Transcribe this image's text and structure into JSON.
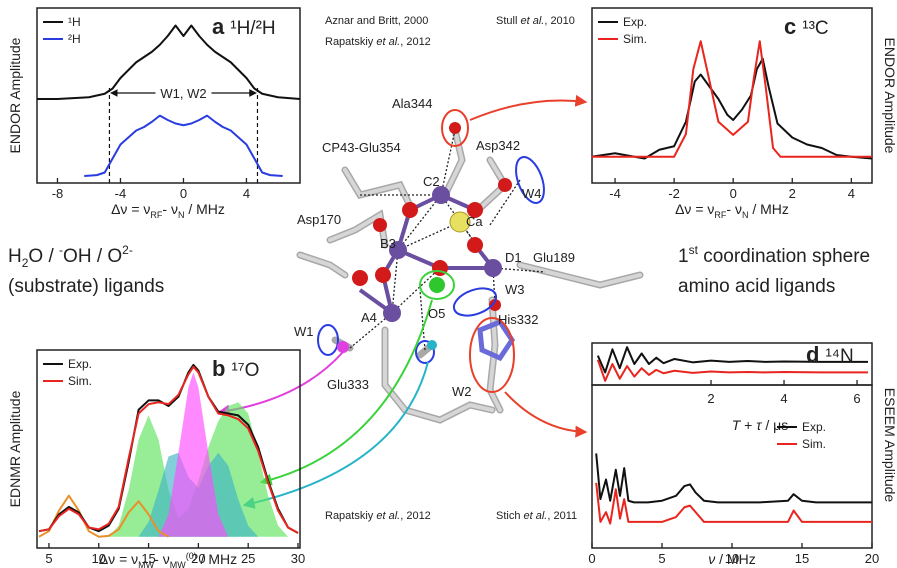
{
  "citations": {
    "a_1": "Aznar and Britt, 2000",
    "a_2": [
      "Rapatskiy ",
      "et al.",
      ", 2012"
    ],
    "c": [
      "Stull ",
      "et al.",
      ", 2010"
    ],
    "b": [
      "Rapatskiy ",
      "et al.",
      ", 2012"
    ],
    "d": [
      "Stich ",
      "et al.",
      ", 2011"
    ]
  },
  "captions": {
    "left_1": [
      "H",
      "2",
      "O / ",
      "-",
      "OH / O",
      "2-"
    ],
    "left_2": "(substrate) ligands",
    "right_1": [
      "1",
      "st",
      " coordination sphere"
    ],
    "right_2": "amino acid ligands"
  },
  "structure_labels": [
    "Ala344",
    "Asp342",
    "CP43-Glu354",
    "C2",
    "Ca",
    "W4",
    "Asp170",
    "B3",
    "Glu189",
    "D1",
    "W3",
    "O5",
    "A4",
    "His332",
    "W1",
    "Glu333",
    "W2"
  ],
  "chart_data": [
    {
      "type": "line",
      "label": "a",
      "title": "¹H/²H",
      "ylabel": "ENDOR Amplitude",
      "xlabel": [
        "Δν = ν",
        "RF",
        "- ν",
        "N",
        " / MHz"
      ],
      "xlim": [
        -9.3,
        7.4
      ],
      "xticks": [
        -8,
        -4,
        0,
        4
      ],
      "ylim": [
        0,
        10
      ],
      "legend": "upper left",
      "guides": [
        -4.7,
        4.7
      ],
      "annotation": "W1, W2",
      "series": [
        {
          "name": "¹H",
          "color": "#111111",
          "x": [
            -9.3,
            -8,
            -7,
            -6,
            -5,
            -4.5,
            -4,
            -3,
            -2,
            -1.5,
            -1,
            -0.5,
            0,
            0.5,
            1,
            1.5,
            2,
            3,
            4,
            4.5,
            5,
            6,
            7.4
          ],
          "values": [
            4.8,
            4.8,
            4.85,
            4.9,
            5.1,
            5.4,
            6.0,
            6.9,
            7.5,
            7.9,
            8.4,
            9.0,
            8.4,
            9.0,
            8.4,
            7.9,
            7.5,
            6.9,
            6.0,
            5.4,
            5.1,
            4.9,
            4.8
          ]
        },
        {
          "name": "²H",
          "color": "#2a3ce0",
          "x": [
            -6.3,
            -5.5,
            -5,
            -4.5,
            -4,
            -3.5,
            -3,
            -2.5,
            -2,
            -1.5,
            -1,
            -0.5,
            0,
            0.5,
            1,
            1.5,
            2,
            2.5,
            3,
            3.5,
            4,
            4.5,
            5,
            5.5,
            6.3
          ],
          "values": [
            0.4,
            0.45,
            0.6,
            1.4,
            2.2,
            2.6,
            3.0,
            3.2,
            3.5,
            3.85,
            3.6,
            3.4,
            3.3,
            3.4,
            3.6,
            3.85,
            3.5,
            3.2,
            3.0,
            2.6,
            2.2,
            1.4,
            0.6,
            0.45,
            0.4
          ]
        }
      ]
    },
    {
      "type": "line",
      "label": "c",
      "title": "¹³C",
      "ylabel": "ENDOR Amplitude",
      "xlabel": [
        "Δν = ν",
        "RF",
        "- ν",
        "N",
        " / MHz"
      ],
      "xlim": [
        -4.78,
        4.7
      ],
      "xticks": [
        -4,
        -2,
        0,
        2,
        4
      ],
      "ylim": [
        0,
        10
      ],
      "legend": "upper left",
      "series": [
        {
          "name": "Exp.",
          "color": "#111111",
          "x": [
            -4.8,
            -4,
            -3,
            -2.5,
            -2,
            -1.6,
            -1.3,
            -1.1,
            -0.8,
            -0.5,
            -0.2,
            0,
            0.3,
            0.6,
            0.8,
            1,
            1.2,
            1.5,
            2,
            2.5,
            3,
            3.5,
            4,
            4.7
          ],
          "values": [
            1.5,
            1.7,
            1.4,
            1.9,
            2.1,
            3.5,
            5.8,
            6.2,
            5.5,
            4.8,
            3.9,
            3.6,
            4.2,
            5.0,
            6.5,
            7.1,
            5.5,
            3.4,
            2.6,
            2.2,
            2.0,
            1.6,
            1.5,
            1.4
          ]
        },
        {
          "name": "Sim.",
          "color": "#e8251f",
          "x": [
            -4.8,
            -2,
            -1.6,
            -1.35,
            -1.1,
            -0.85,
            -0.5,
            0,
            0.5,
            0.7,
            0.9,
            1.1,
            1.35,
            1.6,
            2,
            4.7
          ],
          "values": [
            1.5,
            1.5,
            2.8,
            6.5,
            8.1,
            6.2,
            3.5,
            2.75,
            3.5,
            6.0,
            8.1,
            5.5,
            2.0,
            1.5,
            1.5,
            1.5
          ]
        }
      ]
    },
    {
      "type": "line",
      "label": "b",
      "title": "¹⁷O",
      "ylabel": "EDNMR Amplitude",
      "xlabel": [
        "Δν = ν",
        "MW",
        "- ν",
        "MW",
        "(0)",
        " / MHz"
      ],
      "xlim": [
        3.8,
        30.2
      ],
      "xticks": [
        5,
        10,
        15,
        20,
        25,
        30
      ],
      "ylim": [
        -0.6,
        10
      ],
      "legend": "upper left",
      "series": [
        {
          "color": "#5ee35e",
          "fill": true,
          "x": [
            11,
            12,
            13,
            14,
            15,
            16,
            17,
            18,
            19,
            20,
            21,
            22,
            23,
            24,
            25,
            26,
            27,
            28,
            29
          ],
          "values": [
            0,
            0.6,
            2.5,
            5.2,
            6.5,
            5.2,
            2.5,
            1.0,
            1.5,
            3.0,
            4.8,
            6.2,
            7.0,
            7.2,
            6.6,
            4.5,
            2.2,
            0.6,
            0
          ]
        },
        {
          "color": "#3fb6c4",
          "fill": true,
          "x": [
            14,
            15,
            16,
            17,
            18,
            19,
            20,
            21,
            22,
            23,
            24,
            25,
            26
          ],
          "values": [
            0,
            0.8,
            2.5,
            4.3,
            4.5,
            3.2,
            2.6,
            3.8,
            4.5,
            3.8,
            2.0,
            0.6,
            0
          ]
        },
        {
          "color": "#ff4cff",
          "fill": true,
          "x": [
            16,
            17,
            18,
            19,
            19.5,
            20,
            21,
            22,
            23
          ],
          "values": [
            0,
            1.2,
            4.5,
            8.0,
            8.8,
            8.0,
            4.5,
            1.2,
            0
          ]
        },
        {
          "color": "#e8902a",
          "x": [
            4,
            5,
            6,
            7,
            8,
            9,
            10,
            11,
            12,
            13,
            14,
            15,
            16,
            17
          ],
          "values": [
            0,
            0.3,
            1.4,
            2.2,
            1.4,
            0.3,
            0,
            0.05,
            0.4,
            1.3,
            1.9,
            1.2,
            0.3,
            0
          ]
        },
        {
          "name": "Exp.",
          "color": "#111111",
          "x": [
            4,
            5,
            6,
            7,
            8,
            9,
            10,
            11,
            12,
            13,
            14,
            15,
            16,
            17,
            18,
            19,
            19.5,
            20,
            21,
            22,
            23,
            24,
            25,
            26,
            27,
            28,
            29,
            30
          ],
          "values": [
            0.3,
            0.4,
            1.2,
            1.6,
            1.3,
            0.5,
            0.3,
            0.6,
            1.5,
            4.0,
            6.8,
            7.3,
            7.3,
            7.0,
            7.5,
            8.8,
            9.2,
            8.9,
            7.5,
            6.7,
            6.6,
            6.5,
            6.0,
            4.8,
            3.0,
            1.5,
            0.5,
            0.2
          ]
        },
        {
          "name": "Sim.",
          "color": "#e8251f",
          "x": [
            4,
            5,
            6,
            7,
            8,
            9,
            10,
            11,
            12,
            13,
            14,
            15,
            16,
            17,
            18,
            19,
            19.5,
            20,
            21,
            22,
            23,
            24,
            25,
            26,
            27,
            28,
            29,
            30
          ],
          "values": [
            0.3,
            0.4,
            1.1,
            1.5,
            1.2,
            0.5,
            0.4,
            0.7,
            1.6,
            4.2,
            6.6,
            7.1,
            7.2,
            7.1,
            7.6,
            8.7,
            9.1,
            8.8,
            7.5,
            6.6,
            6.5,
            6.3,
            5.8,
            4.6,
            2.9,
            1.4,
            0.5,
            0.2
          ]
        }
      ]
    },
    {
      "type": "line",
      "label": "d",
      "title": "¹⁴N",
      "ylabel": "ESEEM Amplitude",
      "xlabel": [
        "T",
        " + ",
        "τ",
        " / μs"
      ],
      "xlim": [
        -1.26,
        6.41
      ],
      "xticks": [
        2,
        4,
        6
      ],
      "ylim": [
        0,
        10
      ],
      "series": [
        {
          "color": "#111111",
          "x": [
            -1.1,
            -0.9,
            -0.7,
            -0.5,
            -0.3,
            -0.1,
            0.1,
            0.3,
            0.5,
            0.7,
            1,
            1.5,
            2,
            2.5,
            3,
            3.5,
            4,
            5,
            6.3
          ],
          "values": [
            7,
            3,
            8.5,
            4,
            9,
            5,
            7.5,
            5,
            6.5,
            5.2,
            6.2,
            5.4,
            5.8,
            5.5,
            5.7,
            5.5,
            5.6,
            5.5,
            5.5
          ]
        },
        {
          "color": "#e8251f",
          "x": [
            -1.1,
            -0.9,
            -0.7,
            -0.5,
            -0.3,
            -0.1,
            0.1,
            0.3,
            0.5,
            0.7,
            1,
            1.5,
            2,
            2.5,
            3,
            3.5,
            4,
            5,
            6.3
          ],
          "values": [
            6,
            1,
            5,
            1.5,
            4.5,
            2,
            4,
            2.4,
            3.6,
            2.8,
            3.4,
            2.9,
            3.2,
            3.0,
            3.1,
            3.0,
            3.1,
            3.0,
            3.0
          ]
        }
      ]
    },
    {
      "type": "line",
      "xlabel": [
        "ν",
        " / MHz"
      ],
      "xlim": [
        0,
        20
      ],
      "xticks": [
        0,
        5,
        10,
        15,
        20
      ],
      "ylim": [
        0,
        10
      ],
      "legend": "right",
      "series": [
        {
          "name": "Exp.",
          "color": "#111111",
          "x": [
            0.3,
            0.6,
            1,
            1.3,
            1.7,
            2,
            2.3,
            2.6,
            3,
            4,
            5,
            6,
            6.6,
            7,
            7.4,
            8,
            9,
            10,
            12,
            14,
            14.4,
            15,
            16,
            18,
            20
          ],
          "values": [
            5.8,
            3.0,
            4.2,
            2.9,
            4.8,
            3.2,
            4.9,
            2.9,
            2.8,
            2.8,
            2.9,
            3.2,
            3.8,
            3.9,
            3.4,
            2.9,
            2.8,
            2.8,
            2.8,
            2.9,
            3.3,
            2.9,
            2.8,
            2.8,
            2.8
          ]
        },
        {
          "name": "Sim.",
          "color": "#e8251f",
          "x": [
            0.3,
            0.6,
            1,
            1.3,
            1.7,
            2,
            2.3,
            2.6,
            3,
            4,
            5,
            6,
            6.6,
            7,
            7.4,
            8,
            9,
            10,
            12,
            14,
            14.4,
            15,
            16,
            18,
            20
          ],
          "values": [
            4.0,
            1.6,
            2.2,
            1.5,
            3.6,
            1.8,
            3.0,
            1.6,
            1.6,
            1.6,
            1.6,
            1.9,
            2.5,
            2.6,
            2.2,
            1.6,
            1.6,
            1.6,
            1.6,
            1.6,
            2.3,
            1.6,
            1.6,
            1.6,
            1.6
          ]
        }
      ]
    }
  ]
}
